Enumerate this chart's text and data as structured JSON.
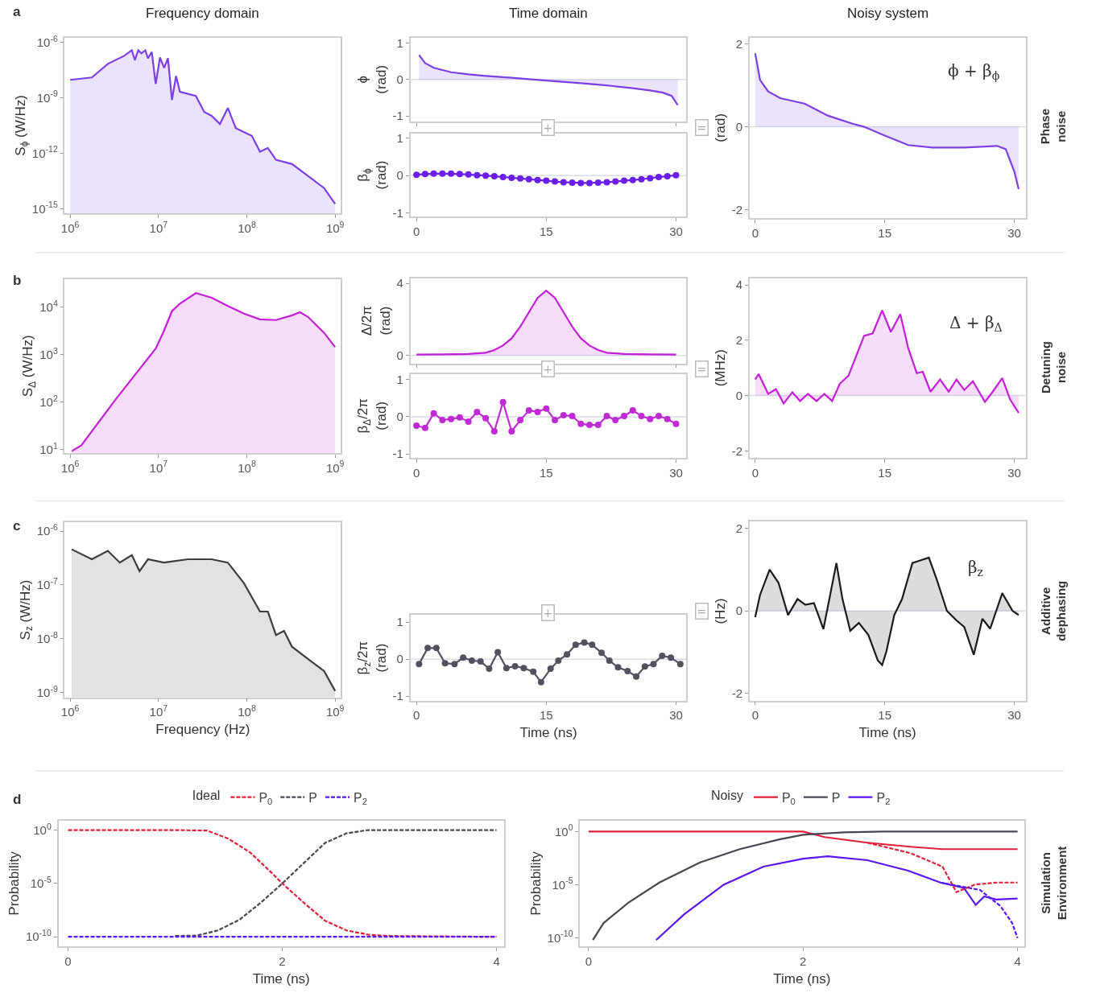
{
  "chart_data": [
    {
      "type": "area",
      "title": "Frequency domain",
      "ylabel": "S$_{ϕ}$ (W/Hz)",
      "annotations": [
        "a"
      ],
      "log": "xy",
      "xlim": [
        870000,
        1160000000
      ],
      "ylim": [
        5.6e-16,
        1.8e-06
      ],
      "xticks": [
        {
          "value": 1000000,
          "label": "10$^{6}$"
        },
        {
          "value": 10000000,
          "label": "10$^{7}$"
        },
        {
          "value": 100000000,
          "label": "10$^{8}$"
        },
        {
          "value": 1000000000,
          "label": "10$^{9}$"
        }
      ],
      "yticks": [
        {
          "value": 1e-06,
          "label": "10$^{-6}$"
        },
        {
          "value": 1e-09,
          "label": "10$^{-9}$"
        },
        {
          "value": 1e-12,
          "label": "10$^{-12}$"
        },
        {
          "value": 1e-15,
          "label": "10$^{-15}$"
        }
      ],
      "series": [
        {
          "color": "#7b3fe4",
          "x": [
            1000000.0,
            1760000.0,
            2670000.0,
            4050000.0,
            4990000.0,
            5400000.0,
            5900000.0,
            6400000.0,
            7100000.0,
            7600000.0,
            8400000.0,
            9300000.0,
            10400000.0,
            11600000.0,
            12800000.0,
            14200000.0,
            15800000.0,
            17500000.0,
            26500000.0,
            33000000.0,
            40000000.0,
            49600000.0,
            61000000.0,
            75000000.0,
            92000000.0,
            114000000.0,
            141000000.0,
            173000000.0,
            214000000.0,
            325000000.0,
            493000000.0,
            750000000.0,
            1000000000.0
          ],
          "values": [
            9.3e-09,
            1.25e-08,
            6.8e-08,
            1.8e-07,
            3.7e-07,
            1.1e-07,
            3.7e-07,
            2.5e-07,
            3.7e-07,
            1.36e-07,
            3e-07,
            5.6e-09,
            1.5e-07,
            4.1e-08,
            1.36e-07,
            7.6e-10,
            1.5e-08,
            2.1e-09,
            1.26e-09,
            1.7e-10,
            1.05e-10,
            3.8e-11,
            2.8e-10,
            2.3e-11,
            1.4e-11,
            8.7e-12,
            1.2e-12,
            1.9e-12,
            4.4e-13,
            2.6e-13,
            5.9e-14,
            1.3e-14,
            1.8e-15
          ]
        }
      ]
    },
    {
      "type": "area",
      "title": "Time domain",
      "ylabel": "ϕ\n(rad)",
      "tick_labels": "y",
      "xlim": [
        -0.7,
        31.2
      ],
      "ylim": [
        -1.15,
        1.15
      ],
      "xticks": [
        0,
        15,
        30
      ],
      "yticks": [
        -1,
        0,
        1
      ],
      "ref_lines": [
        {
          "axis": "y",
          "value": 0,
          "color": "#d8dde8"
        }
      ],
      "series": [
        {
          "color": "#7b3fe4",
          "x": [
            0.3,
            1,
            2,
            4,
            6,
            8,
            11,
            15,
            19,
            22,
            25,
            27,
            28.5,
            29.5,
            30.2
          ],
          "values": [
            0.67,
            0.45,
            0.32,
            0.2,
            0.14,
            0.1,
            0.05,
            -0.03,
            -0.1,
            -0.16,
            -0.24,
            -0.3,
            -0.36,
            -0.45,
            -0.7
          ]
        }
      ]
    },
    {
      "type": "line",
      "ylabel": "β$_{ϕ}$\n(rad)",
      "annotations": [
        "+"
      ],
      "marker": "circle",
      "xlim": [
        -0.7,
        31.2
      ],
      "ylim": [
        -1.1,
        1.13
      ],
      "xticks": [
        0,
        15,
        30
      ],
      "yticks": [
        -1,
        0,
        1
      ],
      "ref_lines": [
        {
          "axis": "y",
          "value": 0,
          "color": "#d8dde8"
        }
      ],
      "series": [
        {
          "color": "#6a1ee8",
          "x": [
            0,
            1,
            2,
            3,
            4,
            5,
            6,
            7,
            8,
            9,
            10,
            11,
            12,
            13,
            14,
            15,
            16,
            17,
            18,
            19,
            20,
            21,
            22,
            23,
            24,
            25,
            26,
            27,
            28,
            29,
            30
          ],
          "values": [
            0.02,
            0.04,
            0.05,
            0.05,
            0.05,
            0.04,
            0.03,
            0.01,
            0,
            -0.02,
            -0.04,
            -0.06,
            -0.08,
            -0.1,
            -0.12,
            -0.14,
            -0.16,
            -0.18,
            -0.19,
            -0.2,
            -0.2,
            -0.19,
            -0.18,
            -0.16,
            -0.14,
            -0.12,
            -0.1,
            -0.07,
            -0.04,
            -0.02,
            0.01
          ]
        }
      ]
    },
    {
      "type": "area",
      "title": "Noisy system",
      "ylabel": "(rad)",
      "annotations": [
        "ϕ + β$_{ϕ}$",
        "=",
        "Phase\nnoise"
      ],
      "xlim": [
        -0.65,
        31.3
      ],
      "ylim": [
        -2.2,
        2.15
      ],
      "xticks": [
        0,
        15,
        30
      ],
      "yticks": [
        -2,
        0,
        2
      ],
      "ref_lines": [
        {
          "axis": "y",
          "value": 0,
          "color": "#d8dde8"
        }
      ],
      "series": [
        {
          "color": "#7b3fe4",
          "x": [
            0,
            0.56,
            1.5,
            2.9,
            5.7,
            8.4,
            11.2,
            12.6,
            15,
            17.7,
            20.5,
            24.2,
            28,
            29,
            30,
            30.5
          ],
          "values": [
            1.77,
            1.13,
            0.85,
            0.69,
            0.56,
            0.27,
            0.08,
            0,
            -0.21,
            -0.44,
            -0.5,
            -0.5,
            -0.46,
            -0.54,
            -1.08,
            -1.5
          ]
        }
      ]
    },
    {
      "type": "area",
      "ylabel": "S$_{Δ}$ (W/Hz)",
      "annotations": [
        "b"
      ],
      "log": "xy",
      "xlim": [
        870000,
        1160000000
      ],
      "ylim": [
        8.5,
        40000
      ],
      "xticks": [
        {
          "value": 1000000,
          "label": "10$^{6}$"
        },
        {
          "value": 10000000,
          "label": "10$^{7}$"
        },
        {
          "value": 100000000,
          "label": "10$^{8}$"
        },
        {
          "value": 1000000000,
          "label": "10$^{9}$"
        }
      ],
      "yticks": [
        {
          "value": 10,
          "label": "10$^{1}$"
        },
        {
          "value": 100,
          "label": "10$^{2}$"
        },
        {
          "value": 1000,
          "label": "10$^{3}$"
        },
        {
          "value": 10000,
          "label": "10$^{4}$"
        }
      ],
      "series": [
        {
          "color": "#c41ed8",
          "x": [
            1040000.0,
            1340000.0,
            3300000.0,
            9300000.0,
            11500000.0,
            14200000.0,
            17500000.0,
            26500000.0,
            40000000.0,
            61000000.0,
            93000000.0,
            141000000.0,
            214000000.0,
            325000000.0,
            400000000.0,
            493000000.0,
            750000000.0,
            1000000000.0
          ],
          "values": [
            9.3,
            12.3,
            117,
            1350,
            3160,
            8300,
            12000,
            20000,
            16000,
            10700,
            7400,
            5600,
            5400,
            6800,
            7900,
            6300,
            2900,
            1450
          ]
        }
      ]
    },
    {
      "type": "area",
      "ylabel": "Δ/2π\n(rad)",
      "tick_labels": "y",
      "xlim": [
        -0.7,
        31.2
      ],
      "ylim": [
        -0.45,
        4.3
      ],
      "xticks": [
        0,
        15,
        30
      ],
      "yticks": [
        0,
        4
      ],
      "ref_lines": [
        {
          "axis": "y",
          "value": 0,
          "color": "#d8dde8"
        }
      ],
      "series": [
        {
          "color": "#c41ed8",
          "x": [
            0,
            3,
            6,
            8,
            9,
            10,
            11,
            12,
            13,
            14,
            15,
            16,
            17,
            18,
            19,
            20,
            21,
            22,
            24,
            27,
            30
          ],
          "values": [
            0.05,
            0.06,
            0.08,
            0.15,
            0.3,
            0.55,
            0.95,
            1.6,
            2.4,
            3.2,
            3.6,
            3.2,
            2.4,
            1.6,
            0.95,
            0.55,
            0.3,
            0.15,
            0.08,
            0.06,
            0.05
          ]
        }
      ]
    },
    {
      "type": "line",
      "ylabel": "β$_{Δ}$/2π\n(rad)",
      "annotations": [
        "+"
      ],
      "marker": "circle",
      "xlim": [
        -0.7,
        31.2
      ],
      "ylim": [
        -1.1,
        1.15
      ],
      "xticks": [
        0,
        15,
        30
      ],
      "yticks": [
        -1,
        0,
        1
      ],
      "ref_lines": [
        {
          "axis": "y",
          "value": 0,
          "color": "#d8dde8"
        }
      ],
      "series": [
        {
          "color": "#c02ad4",
          "x": [
            0,
            1,
            2,
            3,
            4,
            5,
            6,
            7,
            8,
            9,
            10,
            11,
            12,
            13,
            14,
            15,
            16,
            17,
            18,
            19,
            20,
            21,
            22,
            23,
            24,
            25,
            26,
            27,
            28,
            29,
            30
          ],
          "values": [
            -0.24,
            -0.3,
            0.09,
            -0.09,
            -0.06,
            -0.02,
            -0.13,
            0.13,
            -0.04,
            -0.39,
            0.39,
            -0.39,
            -0.09,
            0.17,
            0.13,
            0.22,
            -0.09,
            0.04,
            0.02,
            -0.19,
            -0.22,
            -0.22,
            0.02,
            -0.09,
            0.02,
            0.17,
            0.02,
            -0.06,
            0.02,
            -0.06,
            -0.19
          ]
        }
      ]
    },
    {
      "type": "area",
      "ylabel": "(MHz)",
      "annotations": [
        "Δ + β$_{Δ}$",
        "=",
        "Detuning\nnoise"
      ],
      "xlim": [
        -0.65,
        31.3
      ],
      "ylim": [
        -2.25,
        4.25
      ],
      "xticks": [
        0,
        15,
        30
      ],
      "yticks": [
        -2,
        0,
        2,
        4
      ],
      "ref_lines": [
        {
          "axis": "y",
          "value": 0,
          "color": "#d8dde8"
        }
      ],
      "series": [
        {
          "color": "#c41ed8",
          "x": [
            0,
            0.4,
            1.5,
            2.4,
            3.3,
            4.3,
            5.2,
            6.1,
            7.1,
            8,
            8.9,
            9.8,
            10.8,
            11.7,
            12.6,
            13.6,
            14.7,
            15.7,
            16.8,
            17.7,
            18.7,
            19.4,
            20.3,
            21.4,
            22.4,
            23.3,
            24.2,
            25.2,
            26.6,
            27.5,
            28.6,
            29.5,
            30.5
          ],
          "values": [
            0.58,
            0.78,
            0.06,
            0.23,
            -0.29,
            0.12,
            -0.2,
            0.06,
            -0.2,
            0.06,
            -0.2,
            0.43,
            0.72,
            1.44,
            2.16,
            2.25,
            3.08,
            2.3,
            2.94,
            1.73,
            0.81,
            0.86,
            0.14,
            0.58,
            0.14,
            0.58,
            0.2,
            0.52,
            -0.23,
            0.14,
            0.63,
            -0.14,
            -0.63
          ]
        }
      ]
    },
    {
      "type": "area",
      "ylabel": "S$_{z}$ (W/Hz)",
      "xlabel": "Frequency (Hz)",
      "annotations": [
        "c"
      ],
      "log": "xy",
      "xlim": [
        870000,
        1160000000
      ],
      "ylim": [
        8.1e-10,
        1.45e-06
      ],
      "xticks": [
        {
          "value": 1000000,
          "label": "10$^{6}$"
        },
        {
          "value": 10000000,
          "label": "10$^{7}$"
        },
        {
          "value": 100000000,
          "label": "10$^{8}$"
        },
        {
          "value": 1000000000,
          "label": "10$^{9}$"
        }
      ],
      "yticks": [
        {
          "value": 1e-06,
          "label": "10$^{-6}$"
        },
        {
          "value": 1e-07,
          "label": "10$^{-7}$"
        },
        {
          "value": 1e-08,
          "label": "10$^{-8}$"
        },
        {
          "value": 1e-09,
          "label": "10$^{-9}$"
        }
      ],
      "series": [
        {
          "color": "#3c3c3c",
          "x": [
            1040000.0,
            1760000.0,
            2670000.0,
            3650000.0,
            4990000.0,
            6100000.0,
            7600000.0,
            11500000.0,
            21500000.0,
            40000000.0,
            61000000.0,
            93000000.0,
            141000000.0,
            173000000.0,
            214000000.0,
            264000000.0,
            325000000.0,
            493000000.0,
            750000000.0,
            1000000000.0
          ],
          "values": [
            4.6e-07,
            3e-07,
            4.3e-07,
            2.6e-07,
            3.6e-07,
            1.8e-07,
            3e-07,
            2.6e-07,
            3e-07,
            3e-07,
            2.6e-07,
            1.07e-07,
            3.2e-08,
            3.2e-08,
            1.17e-08,
            1.4e-08,
            7.1e-09,
            4.2e-09,
            2.5e-09,
            1.07e-09
          ]
        }
      ]
    },
    {
      "type": "line",
      "ylabel": "β$_{z}$/2π\n(rad)",
      "xlabel": "Time (ns)",
      "annotations": [
        "+"
      ],
      "marker": "circle",
      "xlim": [
        -0.7,
        31.2
      ],
      "ylim": [
        -1.12,
        1.19
      ],
      "xticks": [
        0,
        15,
        30
      ],
      "yticks": [
        -1,
        0,
        1
      ],
      "ref_lines": [
        {
          "axis": "y",
          "value": 0,
          "color": "#d8dde8"
        }
      ],
      "series": [
        {
          "color": "#555060",
          "x": [
            0.3,
            1.3,
            2.3,
            3.3,
            4.4,
            5.4,
            6.4,
            7.4,
            8.4,
            9.4,
            10.4,
            11.4,
            12.4,
            13.5,
            14.4,
            15.5,
            16.4,
            17.4,
            18.4,
            19.4,
            20.3,
            21.4,
            22.3,
            23.3,
            24.4,
            25.4,
            26.4,
            27.4,
            28.4,
            29.4,
            30.5
          ],
          "values": [
            -0.13,
            0.3,
            0.3,
            -0.11,
            -0.13,
            0.04,
            -0.04,
            -0.06,
            -0.26,
            0.19,
            -0.24,
            -0.19,
            -0.24,
            -0.34,
            -0.62,
            -0.26,
            -0.04,
            0.13,
            0.39,
            0.45,
            0.39,
            0.17,
            -0.04,
            -0.22,
            -0.32,
            -0.47,
            -0.2,
            -0.13,
            0.09,
            0.04,
            -0.13
          ]
        }
      ]
    },
    {
      "type": "area",
      "ylabel": "(Hz)",
      "xlabel": "Time (ns)",
      "annotations": [
        "β$_{z}$",
        "=",
        "Additive\ndephasing"
      ],
      "xlim": [
        -0.65,
        31.3
      ],
      "ylim": [
        -2.17,
        2.16
      ],
      "xticks": [
        0,
        15,
        30
      ],
      "yticks": [
        -2,
        0,
        2
      ],
      "ref_lines": [
        {
          "axis": "y",
          "value": 0,
          "color": "#d8dde8"
        }
      ],
      "series": [
        {
          "color": "#1a1a1a",
          "x": [
            0,
            0.56,
            1.67,
            2.7,
            3.8,
            4.9,
            5.8,
            6.8,
            7.9,
            9.4,
            10.1,
            11,
            12,
            13.1,
            14.2,
            14.7,
            15.2,
            16.1,
            17,
            18.2,
            19.1,
            20.1,
            21,
            22.2,
            23.3,
            24.2,
            25.3,
            26.3,
            27.2,
            28.6,
            29.8,
            30.5
          ],
          "values": [
            -0.15,
            0.39,
            1.0,
            0.68,
            -0.1,
            0.29,
            0.15,
            0.19,
            -0.44,
            1.16,
            0.29,
            -0.48,
            -0.29,
            -0.58,
            -1.2,
            -1.31,
            -0.97,
            -0.1,
            0.29,
            1.16,
            1.22,
            1.29,
            0.77,
            0,
            -0.23,
            -0.39,
            -1.06,
            -0.19,
            -0.43,
            0.43,
            0,
            -0.1
          ]
        }
      ]
    },
    {
      "type": "line",
      "ylabel": "Probability",
      "xlabel": "Time (ns)",
      "annotations": [
        "d"
      ],
      "legend": "top",
      "legend_title": "Ideal",
      "line_style": "dashed",
      "log": "y",
      "xlim": [
        -0.09,
        4.07
      ],
      "ylim": [
        1.2e-11,
        8
      ],
      "xticks": [
        0,
        2,
        4
      ],
      "yticks": [
        {
          "value": 1,
          "label": "10$^{0}$"
        },
        {
          "value": 1e-05,
          "label": "10$^{-5}$"
        },
        {
          "value": 1e-10,
          "label": "10$^{-10}$"
        }
      ],
      "series": [
        {
          "name": "P$_{0}$",
          "color": "#e0203a",
          "x": [
            0,
            1,
            1.3,
            1.5,
            1.7,
            1.9,
            2.0,
            2.2,
            2.4,
            2.6,
            2.8,
            3,
            4
          ],
          "values": [
            1,
            1,
            0.9,
            0.15,
            0.008,
            0.0001,
            1e-05,
            1.6e-07,
            3.2e-09,
            4e-10,
            1.6e-10,
            1.2e-10,
            1e-10
          ]
        },
        {
          "name": "P",
          "color": "#4a4553",
          "x": [
            1,
            1.2,
            1.4,
            1.6,
            1.8,
            2.0,
            2.2,
            2.4,
            2.6,
            2.8,
            3,
            4
          ],
          "values": [
            1.2e-10,
            1.3e-10,
            4e-10,
            4e-09,
            1.6e-07,
            1e-05,
            0.0008,
            0.063,
            0.5,
            1,
            1,
            1
          ]
        },
        {
          "name": "P$_{2}$",
          "color": "#5a16f0",
          "x": [
            0,
            4
          ],
          "values": [
            1e-10,
            1e-10
          ]
        }
      ]
    },
    {
      "type": "line",
      "ylabel": "Probability",
      "xlabel": "Time (ns)",
      "annotations": [
        "Simulation\nEnvironment"
      ],
      "legend": "top",
      "legend_title": "Noisy",
      "log": "y",
      "xlim": [
        -0.08,
        4.06
      ],
      "ylim": [
        1.5e-11,
        11
      ],
      "xticks": [
        0,
        2,
        4
      ],
      "yticks": [
        {
          "value": 1,
          "label": "10$^{0}$"
        },
        {
          "value": 1e-05,
          "label": "10$^{-5}$"
        },
        {
          "value": 1e-10,
          "label": "10$^{-10}$"
        }
      ],
      "series": [
        {
          "name": "P$_{0}$",
          "color": "#e0203a",
          "x": [
            0,
            2,
            2.2,
            2.6,
            3,
            3.3,
            4
          ],
          "values": [
            1,
            1,
            0.3,
            0.089,
            0.037,
            0.022,
            0.022
          ]
        },
        {
          "name": "P",
          "color": "#4a4553",
          "x": [
            0.04,
            0.14,
            0.37,
            0.66,
            1.04,
            1.41,
            1.78,
            2.0,
            2.38,
            2.75,
            4
          ],
          "values": [
            6.3e-11,
            2.5e-09,
            2e-07,
            1.6e-05,
            0.00126,
            0.022,
            0.18,
            0.5,
            0.83,
            1,
            1
          ]
        },
        {
          "name": "P$_{2}$",
          "color": "#5a16f0",
          "x": [
            0.63,
            0.89,
            1.26,
            1.63,
            2.0,
            2.23,
            2.6,
            2.98,
            3.28,
            3.5,
            3.61,
            3.69,
            3.8,
            4
          ],
          "values": [
            6.3e-11,
            1.6e-08,
            1e-05,
            0.0005,
            0.0028,
            0.0047,
            0.002,
            0.00021,
            1.6e-05,
            5e-06,
            1.26e-07,
            7.9e-07,
            4e-07,
            5e-07
          ]
        },
        {
          "color": "#e0203a",
          "line_style": "dashed",
          "x": [
            2.6,
            3,
            3.3,
            3.43,
            3.6,
            3.8,
            4
          ],
          "values": [
            0.089,
            0.0093,
            0.0005,
            2e-06,
            1e-05,
            1.6e-05,
            1.6e-05
          ]
        },
        {
          "color": "#5a16f0",
          "line_style": "dashed",
          "x": [
            3.28,
            3.65,
            3.84,
            3.95,
            4
          ],
          "values": [
            1.6e-05,
            3.2e-06,
            1e-07,
            2.5e-09,
            1e-10
          ]
        }
      ]
    }
  ]
}
